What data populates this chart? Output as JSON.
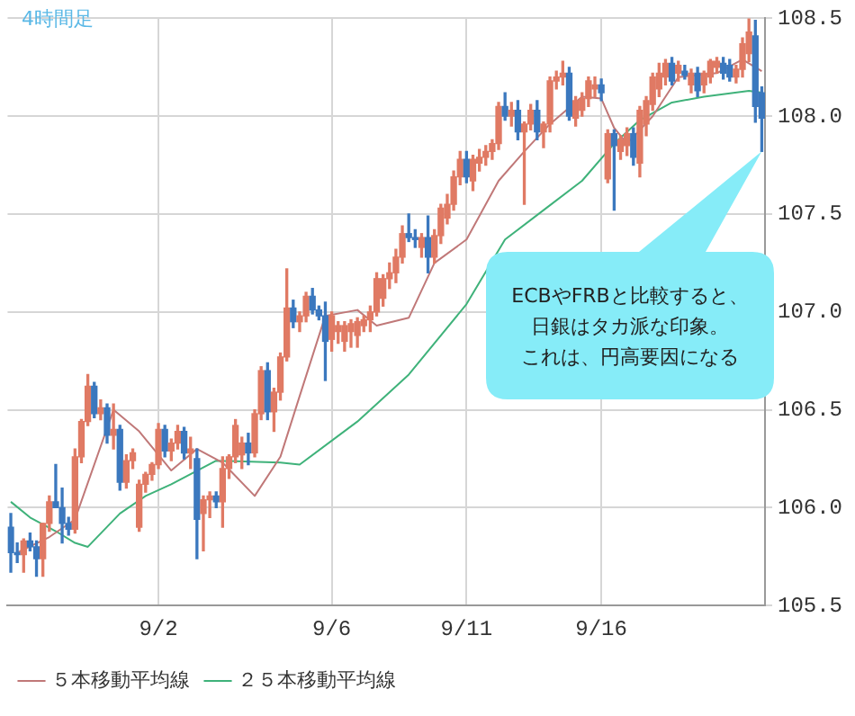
{
  "chart_data": {
    "type": "candlestick",
    "title": "4時間足",
    "categories": [
      null,
      null,
      null,
      null,
      null,
      null,
      null,
      null,
      null,
      null,
      null,
      null,
      null,
      null,
      null,
      null,
      null,
      null,
      null,
      null,
      null,
      null,
      null,
      "9/2",
      null,
      null,
      null,
      null,
      null,
      null,
      null,
      null,
      null,
      null,
      null,
      null,
      null,
      null,
      null,
      null,
      null,
      null,
      null,
      null,
      null,
      null,
      null,
      null,
      null,
      null,
      "9/6",
      null,
      null,
      null,
      null,
      null,
      null,
      null,
      null,
      null,
      null,
      null,
      null,
      null,
      null,
      null,
      null,
      null,
      null,
      null,
      null,
      "9/11",
      null,
      null,
      null,
      null,
      null,
      null,
      null,
      null,
      null,
      null,
      null,
      null,
      null,
      null,
      null,
      null,
      null,
      null,
      null,
      null,
      "9/16",
      null,
      null,
      null,
      null,
      null,
      null,
      null,
      null,
      null,
      null,
      null,
      null,
      null,
      null,
      null,
      null,
      null,
      null,
      null,
      null,
      null,
      null,
      null,
      null,
      null
    ],
    "ohlc": [
      [
        105.9,
        105.97,
        105.67,
        105.77
      ],
      [
        105.77,
        105.82,
        105.72,
        105.76
      ],
      [
        105.76,
        105.84,
        105.67,
        105.83
      ],
      [
        105.83,
        105.87,
        105.78,
        105.8
      ],
      [
        105.8,
        105.83,
        105.65,
        105.74
      ],
      [
        105.74,
        105.92,
        105.65,
        105.92
      ],
      [
        105.92,
        106.06,
        105.88,
        106.03
      ],
      [
        106.03,
        106.22,
        106.0,
        106.0
      ],
      [
        106.0,
        106.1,
        105.82,
        105.92
      ],
      [
        105.92,
        105.95,
        105.86,
        105.89
      ],
      [
        105.89,
        106.3,
        105.87,
        106.26
      ],
      [
        106.26,
        106.45,
        106.23,
        106.44
      ],
      [
        106.44,
        106.68,
        106.42,
        106.62
      ],
      [
        106.62,
        106.64,
        106.46,
        106.48
      ],
      [
        106.48,
        106.55,
        106.45,
        106.51
      ],
      [
        106.51,
        106.53,
        106.33,
        106.37
      ],
      [
        106.37,
        106.53,
        106.3,
        106.4
      ],
      [
        106.4,
        106.42,
        106.09,
        106.13
      ],
      [
        106.13,
        106.27,
        106.1,
        106.24
      ],
      [
        106.24,
        106.3,
        106.2,
        106.28
      ],
      [
        105.9,
        106.14,
        105.88,
        106.12
      ],
      [
        106.12,
        106.18,
        106.08,
        106.17
      ],
      [
        106.17,
        106.23,
        106.14,
        106.22
      ],
      [
        106.22,
        106.43,
        106.2,
        106.4
      ],
      [
        106.4,
        106.42,
        106.26,
        106.29
      ],
      [
        106.29,
        106.35,
        106.24,
        106.33
      ],
      [
        106.33,
        106.42,
        106.3,
        106.39
      ],
      [
        106.39,
        106.41,
        106.25,
        106.28
      ],
      [
        106.28,
        106.36,
        106.2,
        106.3
      ],
      [
        106.25,
        106.3,
        105.74,
        105.94
      ],
      [
        105.97,
        106.06,
        105.78,
        106.04
      ],
      [
        106.04,
        106.08,
        105.95,
        106.06
      ],
      [
        106.06,
        106.08,
        106.0,
        106.03
      ],
      [
        106.03,
        106.26,
        105.9,
        106.2
      ],
      [
        106.2,
        106.27,
        106.15,
        106.26
      ],
      [
        106.26,
        106.45,
        106.23,
        106.42
      ],
      [
        106.27,
        106.36,
        106.2,
        106.33
      ],
      [
        106.33,
        106.38,
        106.22,
        106.28
      ],
      [
        106.28,
        106.5,
        106.26,
        106.48
      ],
      [
        106.48,
        106.72,
        106.45,
        106.7
      ],
      [
        106.7,
        106.74,
        106.45,
        106.49
      ],
      [
        106.49,
        106.61,
        106.39,
        106.59
      ],
      [
        106.59,
        106.79,
        106.55,
        106.77
      ],
      [
        106.77,
        107.22,
        106.75,
        107.02
      ],
      [
        107.02,
        107.06,
        106.92,
        106.95
      ],
      [
        106.95,
        107.0,
        106.9,
        106.98
      ],
      [
        106.98,
        107.1,
        106.95,
        107.08
      ],
      [
        107.08,
        107.12,
        106.99,
        107.01
      ],
      [
        107.01,
        107.03,
        106.96,
        106.98
      ],
      [
        106.98,
        107.05,
        106.65,
        106.85
      ],
      [
        106.86,
        107.0,
        106.8,
        106.98
      ],
      [
        106.9,
        106.95,
        106.84,
        106.93
      ],
      [
        106.85,
        106.95,
        106.8,
        106.93
      ],
      [
        106.9,
        106.96,
        106.82,
        106.94
      ],
      [
        106.88,
        106.97,
        106.82,
        106.95
      ],
      [
        106.93,
        106.98,
        106.9,
        106.96
      ],
      [
        106.96,
        107.03,
        106.9,
        107.0
      ],
      [
        107.0,
        107.2,
        106.98,
        107.17
      ],
      [
        107.07,
        107.19,
        107.03,
        107.17
      ],
      [
        107.17,
        107.25,
        107.12,
        107.2
      ],
      [
        107.2,
        107.32,
        107.15,
        107.28
      ],
      [
        107.28,
        107.44,
        107.25,
        107.4
      ],
      [
        107.4,
        107.5,
        107.36,
        107.38
      ],
      [
        107.38,
        107.42,
        107.33,
        107.37
      ],
      [
        107.33,
        107.4,
        107.28,
        107.38
      ],
      [
        107.38,
        107.49,
        107.2,
        107.28
      ],
      [
        107.28,
        107.42,
        107.25,
        107.39
      ],
      [
        107.39,
        107.55,
        107.35,
        107.53
      ],
      [
        107.48,
        107.6,
        107.45,
        107.55
      ],
      [
        107.55,
        107.72,
        107.52,
        107.69
      ],
      [
        107.69,
        107.82,
        107.65,
        107.78
      ],
      [
        107.78,
        107.82,
        107.66,
        107.69
      ],
      [
        107.67,
        107.8,
        107.62,
        107.78
      ],
      [
        107.76,
        107.83,
        107.72,
        107.79
      ],
      [
        107.79,
        107.85,
        107.75,
        107.82
      ],
      [
        107.82,
        107.88,
        107.78,
        107.86
      ],
      [
        107.86,
        108.07,
        107.83,
        108.05
      ],
      [
        108.05,
        108.12,
        107.98,
        108.0
      ],
      [
        108.0,
        108.07,
        107.95,
        108.03
      ],
      [
        108.03,
        108.08,
        107.88,
        107.92
      ],
      [
        107.92,
        107.97,
        107.55,
        107.96
      ],
      [
        107.96,
        108.06,
        107.93,
        108.03
      ],
      [
        108.03,
        108.08,
        107.88,
        107.92
      ],
      [
        107.92,
        107.97,
        107.84,
        107.96
      ],
      [
        107.96,
        108.2,
        107.92,
        108.18
      ],
      [
        108.18,
        108.23,
        108.14,
        108.2
      ],
      [
        108.2,
        108.28,
        108.16,
        108.22
      ],
      [
        108.22,
        108.25,
        107.98,
        108.0
      ],
      [
        107.99,
        108.1,
        107.95,
        108.08
      ],
      [
        108.03,
        108.12,
        108.0,
        108.09
      ],
      [
        108.09,
        108.2,
        108.05,
        108.18
      ],
      [
        108.14,
        108.2,
        108.1,
        108.16
      ],
      [
        108.16,
        108.19,
        108.08,
        108.12
      ],
      [
        107.68,
        107.93,
        107.66,
        107.91
      ],
      [
        107.91,
        107.93,
        107.52,
        107.85
      ],
      [
        107.82,
        107.9,
        107.78,
        107.88
      ],
      [
        107.85,
        107.94,
        107.8,
        107.91
      ],
      [
        107.91,
        107.94,
        107.75,
        107.79
      ],
      [
        107.76,
        108.05,
        107.69,
        108.03
      ],
      [
        107.96,
        108.1,
        107.9,
        108.08
      ],
      [
        108.06,
        108.22,
        108.03,
        108.2
      ],
      [
        108.14,
        108.27,
        108.1,
        108.22
      ],
      [
        108.2,
        108.29,
        108.16,
        108.27
      ],
      [
        108.27,
        108.3,
        108.16,
        108.18
      ],
      [
        108.22,
        108.28,
        108.18,
        108.26
      ],
      [
        108.23,
        108.26,
        108.19,
        108.21
      ],
      [
        108.16,
        108.24,
        108.12,
        108.22
      ],
      [
        108.22,
        108.25,
        108.1,
        108.13
      ],
      [
        108.16,
        108.23,
        108.12,
        108.22
      ],
      [
        108.2,
        108.29,
        108.17,
        108.28
      ],
      [
        108.25,
        108.3,
        108.22,
        108.28
      ],
      [
        108.27,
        108.3,
        108.19,
        108.22
      ],
      [
        108.26,
        108.29,
        108.18,
        108.2
      ],
      [
        108.2,
        108.26,
        108.17,
        108.24
      ],
      [
        108.24,
        108.4,
        108.2,
        108.37
      ],
      [
        108.32,
        108.5,
        108.28,
        108.43
      ],
      [
        108.41,
        108.49,
        107.97,
        108.05
      ],
      [
        108.12,
        108.15,
        107.82,
        107.99
      ]
    ],
    "colors": [
      "#3b78be",
      "#3b78be",
      "#e07a64",
      "#3b78be",
      "#3b78be",
      "#e07a64",
      "#e07a64",
      "#3b78be",
      "#3b78be",
      "#3b78be",
      "#e07a64",
      "#e07a64",
      "#e07a64",
      "#3b78be",
      "#e07a64",
      "#3b78be",
      "#e07a64",
      "#3b78be",
      "#e07a64",
      "#e07a64",
      "#e07a64",
      "#e07a64",
      "#e07a64",
      "#e07a64",
      "#3b78be",
      "#e07a64",
      "#e07a64",
      "#3b78be",
      "#e07a64",
      "#3b78be",
      "#e07a64",
      "#e07a64",
      "#3b78be",
      "#e07a64",
      "#e07a64",
      "#e07a64",
      "#e07a64",
      "#3b78be",
      "#e07a64",
      "#e07a64",
      "#3b78be",
      "#e07a64",
      "#e07a64",
      "#e07a64",
      "#3b78be",
      "#e07a64",
      "#e07a64",
      "#3b78be",
      "#3b78be",
      "#3b78be",
      "#e07a64",
      "#e07a64",
      "#e07a64",
      "#e07a64",
      "#e07a64",
      "#e07a64",
      "#e07a64",
      "#e07a64",
      "#e07a64",
      "#e07a64",
      "#e07a64",
      "#e07a64",
      "#3b78be",
      "#3b78be",
      "#e07a64",
      "#3b78be",
      "#e07a64",
      "#e07a64",
      "#e07a64",
      "#e07a64",
      "#e07a64",
      "#3b78be",
      "#e07a64",
      "#e07a64",
      "#e07a64",
      "#e07a64",
      "#e07a64",
      "#3b78be",
      "#e07a64",
      "#3b78be",
      "#e07a64",
      "#e07a64",
      "#3b78be",
      "#e07a64",
      "#e07a64",
      "#e07a64",
      "#e07a64",
      "#3b78be",
      "#e07a64",
      "#e07a64",
      "#e07a64",
      "#e07a64",
      "#3b78be",
      "#e07a64",
      "#3b78be",
      "#e07a64",
      "#e07a64",
      "#3b78be",
      "#e07a64",
      "#e07a64",
      "#e07a64",
      "#e07a64",
      "#e07a64",
      "#3b78be",
      "#e07a64",
      "#3b78be",
      "#e07a64",
      "#3b78be",
      "#e07a64",
      "#e07a64",
      "#e07a64",
      "#3b78be",
      "#3b78be",
      "#e07a64",
      "#e07a64",
      "#e07a64",
      "#3b78be",
      "#3b78be"
    ],
    "series": [
      {
        "type": "line",
        "name": "５本移動平均線",
        "color": "#c07878",
        "values": [
          null,
          105.77,
          null,
          null,
          null,
          null,
          105.85,
          null,
          null,
          null,
          105.94,
          null,
          null,
          null,
          null,
          null,
          106.5,
          null,
          null,
          null,
          106.39,
          null,
          null,
          null,
          null,
          106.19,
          null,
          null,
          null,
          106.3,
          null,
          null,
          null,
          106.23,
          null,
          null,
          null,
          null,
          106.06,
          null,
          null,
          null,
          106.26,
          null,
          null,
          106.57,
          null,
          null,
          null,
          106.98,
          null,
          null,
          null,
          null,
          107.01,
          null,
          null,
          106.93,
          null,
          null,
          null,
          null,
          106.97,
          null,
          null,
          null,
          107.25,
          null,
          null,
          null,
          null,
          107.37,
          null,
          null,
          null,
          null,
          107.67,
          null,
          null,
          null,
          107.82,
          null,
          null,
          null,
          107.96,
          null,
          null,
          null,
          null,
          108.1,
          null,
          null,
          108.09,
          null,
          107.94,
          null,
          107.86,
          null,
          null,
          null,
          108.0,
          null,
          null,
          null,
          108.2,
          null,
          null,
          null,
          null,
          null,
          108.22,
          null,
          null,
          null,
          108.29,
          null,
          null,
          108.23
        ]
      },
      {
        "type": "line",
        "name": "２５本移動平均線",
        "color": "#3fb27a",
        "values": [
          106.03,
          null,
          null,
          105.95,
          null,
          null,
          null,
          105.88,
          null,
          null,
          105.82,
          null,
          105.8,
          null,
          null,
          null,
          null,
          105.97,
          null,
          null,
          null,
          106.06,
          null,
          null,
          null,
          106.12,
          null,
          null,
          null,
          null,
          null,
          null,
          106.24,
          null,
          null,
          null,
          null,
          null,
          null,
          null,
          null,
          null,
          106.23,
          null,
          null,
          106.22,
          null,
          null,
          null,
          null,
          null,
          null,
          null,
          null,
          106.44,
          null,
          null,
          null,
          null,
          null,
          null,
          null,
          106.68,
          null,
          null,
          null,
          null,
          null,
          null,
          null,
          null,
          107.04,
          null,
          null,
          null,
          null,
          null,
          107.37,
          null,
          null,
          null,
          null,
          null,
          107.52,
          null,
          null,
          null,
          null,
          null,
          107.67,
          null,
          null,
          null,
          null,
          107.86,
          null,
          null,
          null,
          107.98,
          null,
          null,
          null,
          null,
          108.07,
          null,
          null,
          null,
          null,
          108.1,
          null,
          null,
          null,
          null,
          null,
          null,
          108.13,
          null,
          108.12
        ]
      }
    ],
    "ylim": [
      105.5,
      108.5
    ],
    "yticks": [
      105.5,
      {
        "value": 106,
        "label": "106.0"
      },
      106.5,
      {
        "value": 107,
        "label": "107.0"
      },
      107.5,
      {
        "value": 108,
        "label": "108.0"
      },
      108.5
    ],
    "annotations": [
      "ECBやFRBと比較すると、",
      "日銀はタカ派な印象。",
      "これは、円高要因になる"
    ],
    "grid": true,
    "legend": "bottom"
  }
}
